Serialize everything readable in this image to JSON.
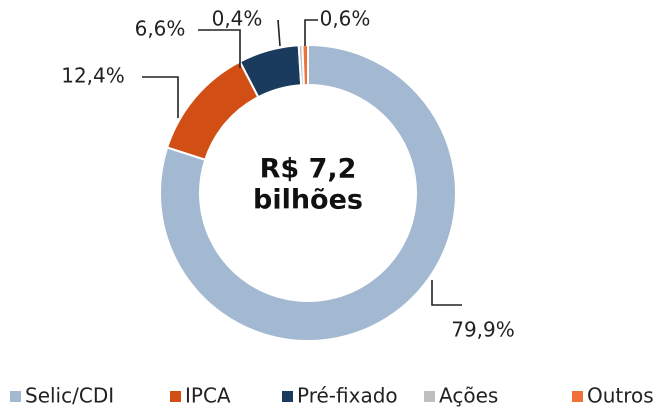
{
  "chart_data": {
    "type": "donut",
    "categories": [
      "Selic/CDI",
      "IPCA",
      "Pré-fixado",
      "Ações",
      "Outros"
    ],
    "values": [
      79.9,
      12.4,
      6.6,
      0.4,
      0.6
    ],
    "value_labels": [
      "79,9%",
      "12,4%",
      "6,6%",
      "0,4%",
      "0,6%"
    ],
    "colors": [
      "#a3b8d1",
      "#d14f15",
      "#1a3a5e",
      "#bfbfbf",
      "#f0703a"
    ],
    "center_text": [
      "R$ 7,2",
      "bilhões"
    ],
    "legend": "bottom"
  }
}
